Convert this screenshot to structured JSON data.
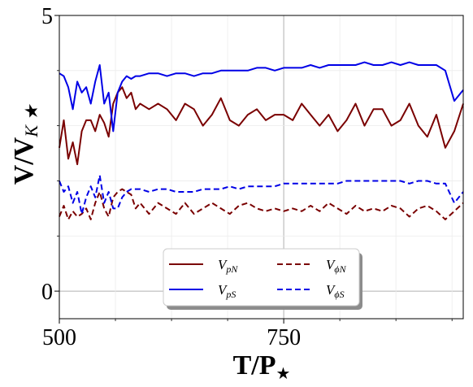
{
  "chart_data": {
    "type": "line",
    "xlabel_main": "T/P",
    "xlabel_sub": "★",
    "ylabel_main": "V/V",
    "ylabel_sub": "K ★",
    "xlim": [
      500,
      950
    ],
    "ylim": [
      -0.5,
      5
    ],
    "x_ticks": [
      500,
      750
    ],
    "x_tick_labels": [
      "500",
      "750"
    ],
    "y_ticks": [
      0,
      5
    ],
    "y_tick_labels": [
      "0",
      "5"
    ],
    "grid": true,
    "legend_placement": "lower-center",
    "legend_columns": 2,
    "series": [
      {
        "name": "V_pN",
        "label_main": "V",
        "label_sub": "pN",
        "color": "#7a0000",
        "style": "solid",
        "x": [
          500,
          505,
          510,
          515,
          520,
          525,
          530,
          535,
          540,
          545,
          550,
          555,
          560,
          565,
          570,
          575,
          580,
          585,
          590,
          600,
          610,
          620,
          630,
          640,
          650,
          660,
          670,
          680,
          690,
          700,
          710,
          720,
          730,
          740,
          750,
          760,
          770,
          780,
          790,
          800,
          810,
          820,
          830,
          840,
          850,
          860,
          870,
          880,
          890,
          900,
          910,
          920,
          930,
          940,
          950
        ],
        "y": [
          2.6,
          3.1,
          2.4,
          2.7,
          2.3,
          2.9,
          3.1,
          3.1,
          2.9,
          3.2,
          3.05,
          2.8,
          3.4,
          3.6,
          3.7,
          3.5,
          3.6,
          3.3,
          3.4,
          3.3,
          3.4,
          3.3,
          3.1,
          3.4,
          3.3,
          3.0,
          3.2,
          3.5,
          3.1,
          3.0,
          3.2,
          3.3,
          3.1,
          3.2,
          3.2,
          3.1,
          3.4,
          3.2,
          3.0,
          3.2,
          2.9,
          3.1,
          3.4,
          3.0,
          3.3,
          3.3,
          3.0,
          3.1,
          3.4,
          3.0,
          2.8,
          3.2,
          2.6,
          2.9,
          3.4
        ]
      },
      {
        "name": "V_pS",
        "label_main": "V",
        "label_sub": "pS",
        "color": "#0000e6",
        "style": "solid",
        "x": [
          500,
          505,
          510,
          515,
          520,
          525,
          530,
          535,
          540,
          545,
          550,
          555,
          560,
          565,
          570,
          575,
          580,
          585,
          590,
          600,
          610,
          620,
          630,
          640,
          650,
          660,
          670,
          680,
          690,
          700,
          710,
          720,
          730,
          740,
          750,
          760,
          770,
          780,
          790,
          800,
          810,
          820,
          830,
          840,
          850,
          860,
          870,
          880,
          890,
          900,
          910,
          920,
          930,
          940,
          950
        ],
        "y": [
          3.95,
          3.9,
          3.7,
          3.3,
          3.8,
          3.6,
          3.7,
          3.4,
          3.8,
          4.1,
          3.4,
          3.6,
          2.9,
          3.6,
          3.8,
          3.9,
          3.85,
          3.9,
          3.9,
          3.95,
          3.95,
          3.9,
          3.95,
          3.95,
          3.9,
          3.95,
          3.95,
          4.0,
          4.0,
          4.0,
          4.0,
          4.05,
          4.05,
          4.0,
          4.05,
          4.05,
          4.05,
          4.1,
          4.05,
          4.1,
          4.1,
          4.1,
          4.1,
          4.15,
          4.1,
          4.1,
          4.15,
          4.1,
          4.15,
          4.1,
          4.1,
          4.1,
          4.0,
          3.45,
          3.65
        ]
      },
      {
        "name": "V_phiN",
        "label_main": "V",
        "label_sub": "ϕN",
        "color": "#7a0000",
        "style": "dashed",
        "x": [
          500,
          505,
          510,
          515,
          520,
          525,
          530,
          535,
          540,
          545,
          550,
          555,
          560,
          565,
          570,
          575,
          580,
          585,
          590,
          600,
          610,
          620,
          630,
          640,
          650,
          660,
          670,
          680,
          690,
          700,
          710,
          720,
          730,
          740,
          750,
          760,
          770,
          780,
          790,
          800,
          810,
          820,
          830,
          840,
          850,
          860,
          870,
          880,
          890,
          900,
          910,
          920,
          930,
          940,
          950
        ],
        "y": [
          1.35,
          1.55,
          1.3,
          1.45,
          1.35,
          1.4,
          1.5,
          1.3,
          1.6,
          1.8,
          1.5,
          1.35,
          1.7,
          1.8,
          1.85,
          1.8,
          1.75,
          1.5,
          1.6,
          1.4,
          1.6,
          1.5,
          1.4,
          1.6,
          1.4,
          1.5,
          1.6,
          1.5,
          1.4,
          1.55,
          1.6,
          1.5,
          1.45,
          1.5,
          1.45,
          1.5,
          1.45,
          1.55,
          1.45,
          1.6,
          1.5,
          1.4,
          1.55,
          1.45,
          1.5,
          1.45,
          1.55,
          1.5,
          1.35,
          1.5,
          1.55,
          1.45,
          1.3,
          1.45,
          1.6
        ]
      },
      {
        "name": "V_phiS",
        "label_main": "V",
        "label_sub": "ϕS",
        "color": "#0000e6",
        "style": "dashed",
        "x": [
          500,
          505,
          510,
          515,
          520,
          525,
          530,
          535,
          540,
          545,
          550,
          555,
          560,
          565,
          570,
          575,
          580,
          585,
          590,
          600,
          610,
          620,
          630,
          640,
          650,
          660,
          670,
          680,
          690,
          700,
          710,
          720,
          730,
          740,
          750,
          760,
          770,
          780,
          790,
          800,
          810,
          820,
          830,
          840,
          850,
          860,
          870,
          880,
          890,
          900,
          910,
          920,
          930,
          940,
          950
        ],
        "y": [
          2.0,
          1.8,
          1.9,
          1.6,
          1.8,
          1.4,
          1.7,
          1.9,
          1.7,
          2.1,
          1.6,
          1.8,
          1.5,
          1.5,
          1.7,
          1.8,
          1.85,
          1.85,
          1.85,
          1.8,
          1.85,
          1.85,
          1.8,
          1.8,
          1.8,
          1.85,
          1.85,
          1.85,
          1.9,
          1.85,
          1.9,
          1.9,
          1.9,
          1.9,
          1.95,
          1.95,
          1.95,
          1.95,
          1.95,
          1.95,
          1.95,
          2.0,
          2.0,
          2.0,
          2.0,
          2.0,
          2.0,
          2.0,
          1.95,
          2.0,
          2.0,
          1.95,
          1.95,
          1.6,
          1.8
        ]
      }
    ]
  }
}
